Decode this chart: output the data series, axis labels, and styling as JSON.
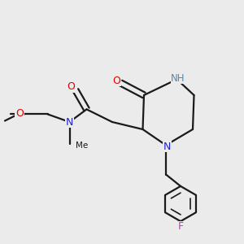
{
  "background_color": "#ebebeb",
  "bond_color": "#1a1a1a",
  "atom_colors": {
    "O": "#dd0000",
    "N": "#2222cc",
    "NH": "#5588aa",
    "F": "#bb44aa",
    "C": "#1a1a1a"
  },
  "figsize": [
    3.0,
    3.0
  ],
  "dpi": 100
}
